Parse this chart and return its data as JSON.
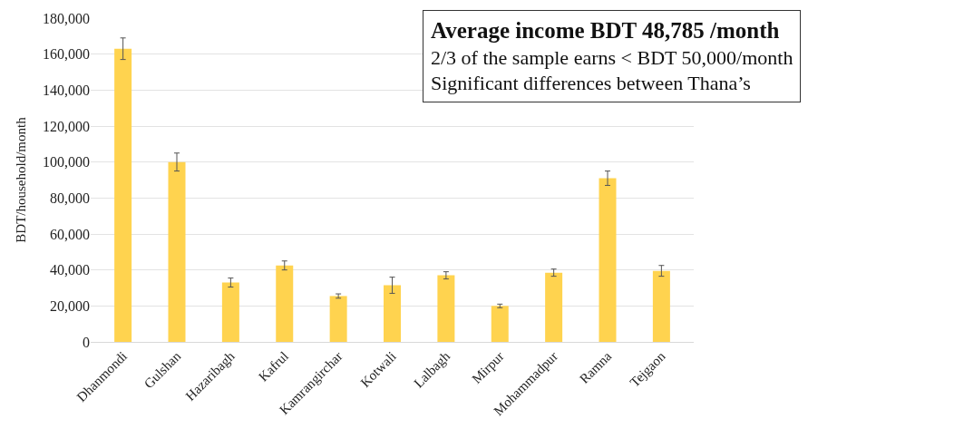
{
  "chart_data": {
    "type": "bar",
    "ylabel": "BDT/household/month",
    "categories": [
      "Dhanmondi",
      "Gulshan",
      "Hazaribagh",
      "Kafrul",
      "Kamrangirchar",
      "Kotwali",
      "Lalbagh",
      "Mirpur",
      "Mohammadpur",
      "Ramna",
      "Tejgaon"
    ],
    "values": [
      163000,
      100000,
      33000,
      42500,
      25500,
      31500,
      37000,
      20000,
      38500,
      91000,
      39500
    ],
    "errors": [
      6000,
      5000,
      2500,
      2500,
      1200,
      4500,
      2000,
      1000,
      2000,
      4000,
      3000
    ],
    "color": "#ffd34f",
    "ylim": [
      0,
      180000
    ],
    "yticks": [
      {
        "value": 0,
        "label": "0"
      },
      {
        "value": 20000,
        "label": "20,000"
      },
      {
        "value": 40000,
        "label": "40,000"
      },
      {
        "value": 60000,
        "label": "60,000"
      },
      {
        "value": 80000,
        "label": "80,000"
      },
      {
        "value": 100000,
        "label": "100,000"
      },
      {
        "value": 120000,
        "label": "120,000"
      },
      {
        "value": 140000,
        "label": "140,000"
      },
      {
        "value": 160000,
        "label": "160,000"
      },
      {
        "value": 180000,
        "label": "180,000"
      }
    ],
    "grid": "y",
    "annotations": [
      "Average income BDT 48,785 /month",
      "2/3 of the sample earns < BDT 50,000/month",
      "Significant differences between Thana’s"
    ]
  }
}
